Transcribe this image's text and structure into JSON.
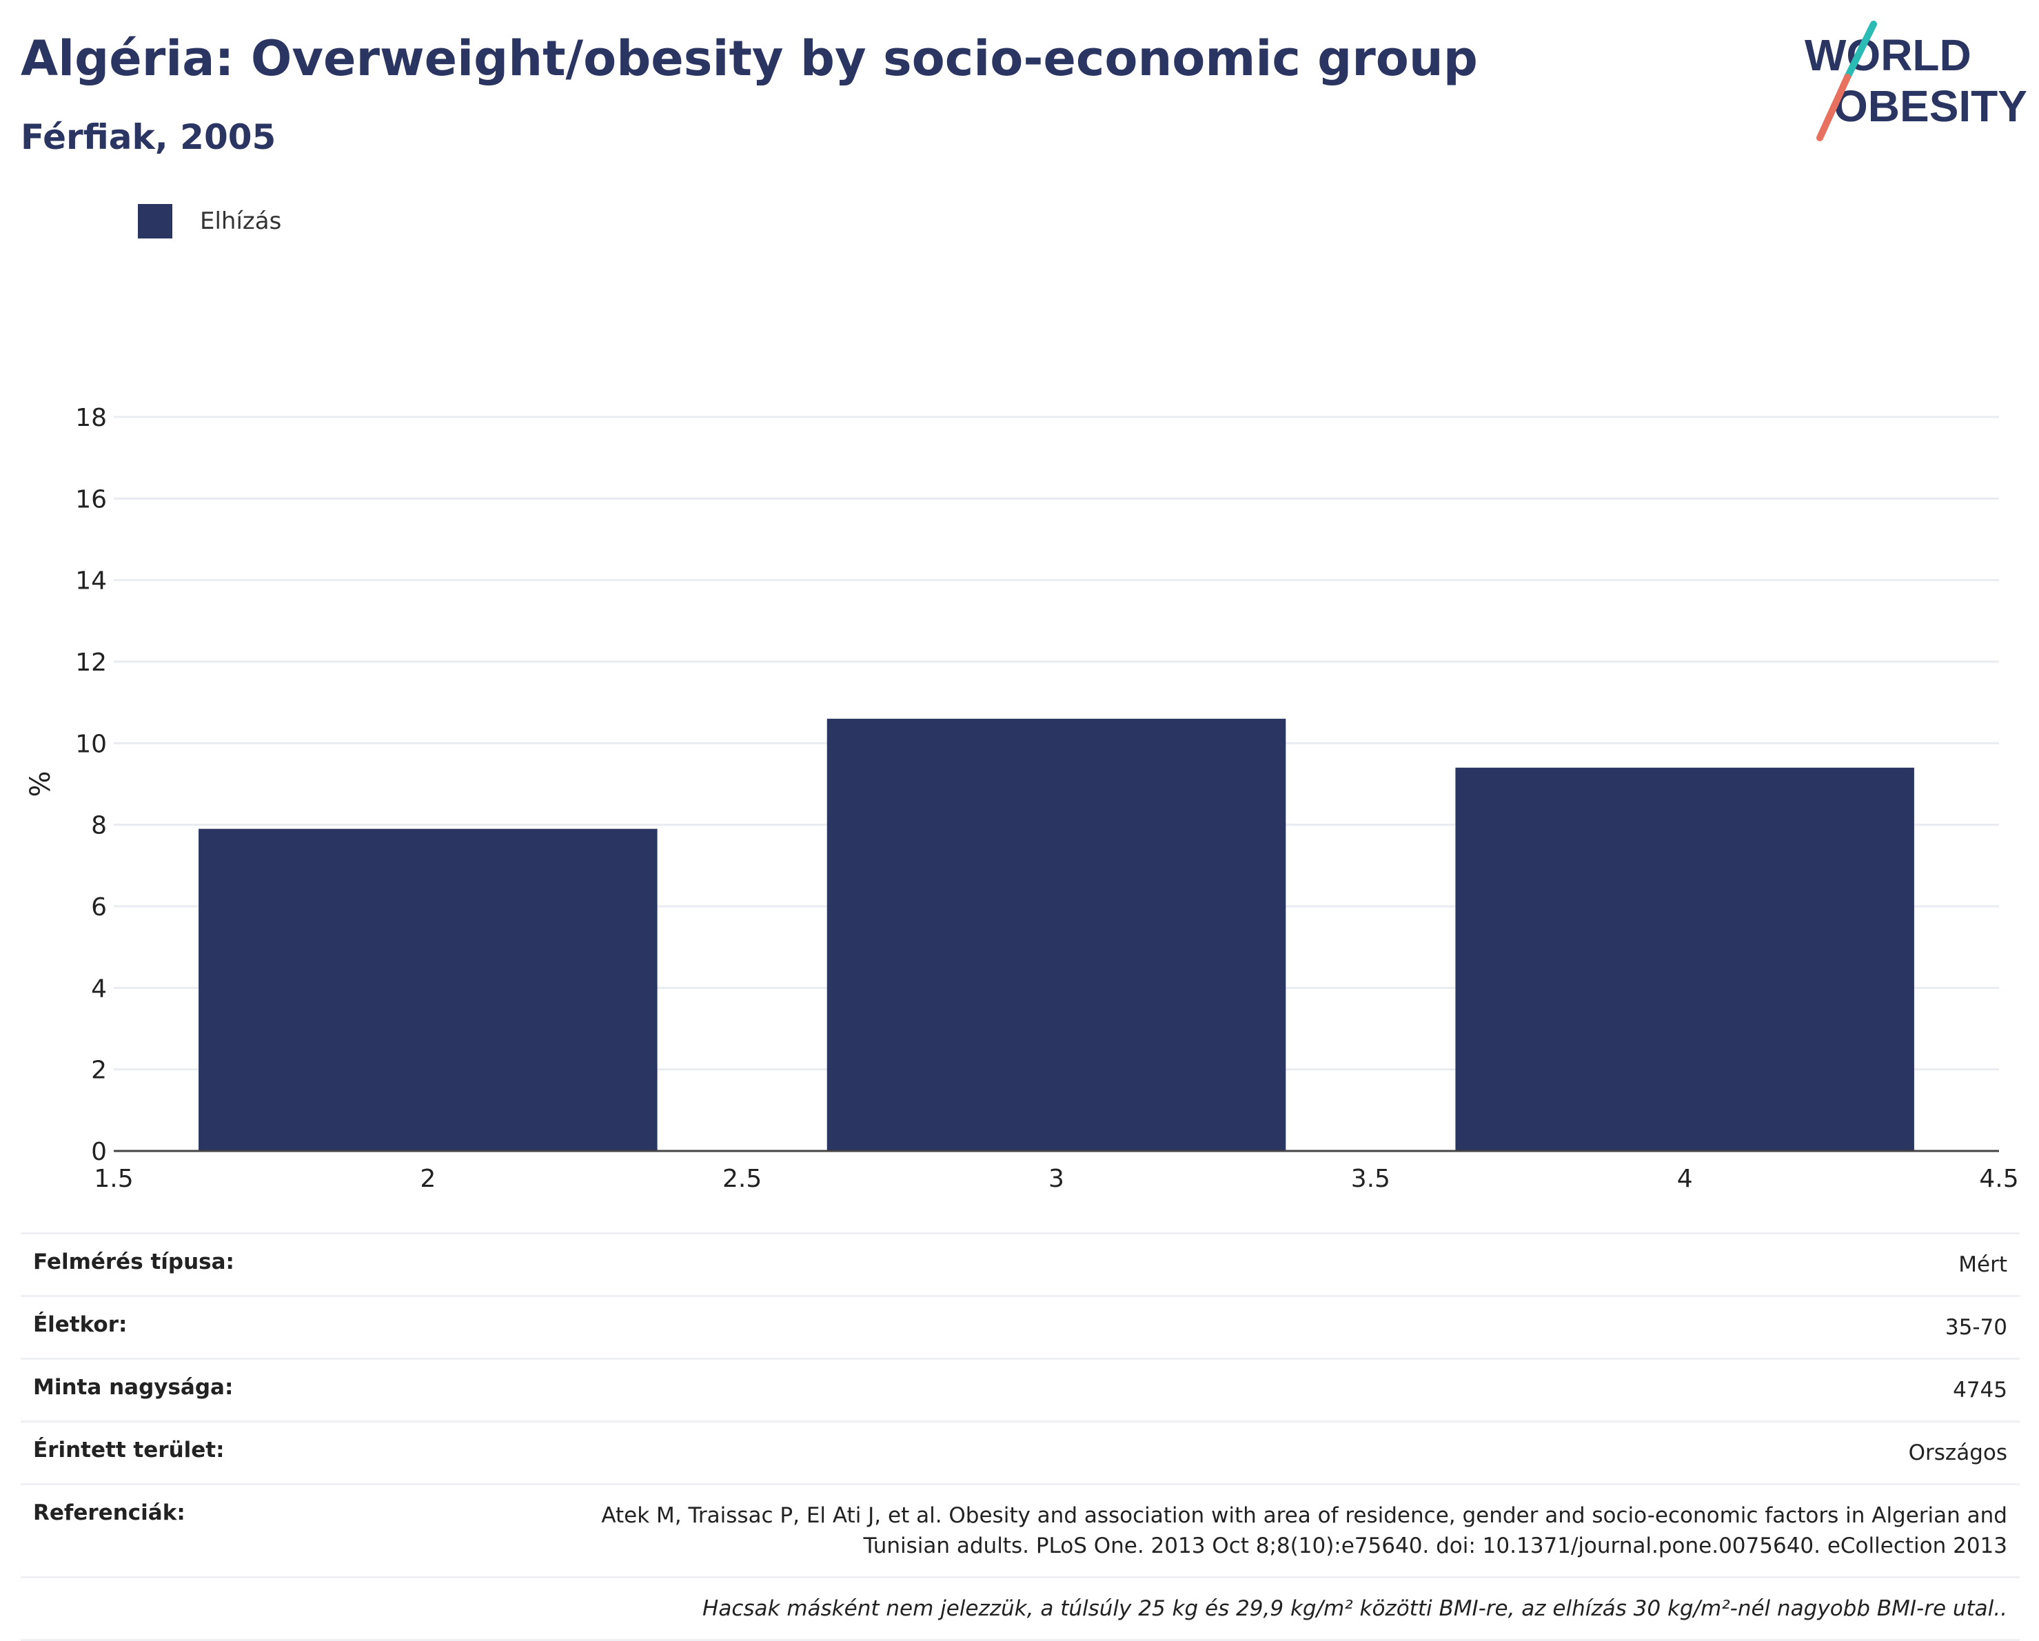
{
  "header": {
    "title": "Algéria: Overweight/obesity by socio-economic group",
    "subtitle": "Férfiak, 2005"
  },
  "logo": {
    "line1": "WORLD",
    "line2": "OBESITY"
  },
  "colors": {
    "bar": "#2a3561",
    "text": "#2a3561",
    "grid": "#e9ecf1",
    "logo_teal": "#2bbbb5",
    "logo_coral": "#e8705f"
  },
  "legend": {
    "items": [
      {
        "label": "Elhízás",
        "color": "#2a3561"
      }
    ]
  },
  "chart_data": {
    "type": "bar",
    "x": [
      2,
      3,
      4
    ],
    "series": [
      {
        "name": "Elhízás",
        "values": [
          7.9,
          10.6,
          9.4
        ]
      }
    ],
    "bar_width_units": 0.73,
    "xlim": [
      1.5,
      4.5
    ],
    "ylim": [
      0,
      18
    ],
    "xticks": [
      "1.5",
      "2",
      "2.5",
      "3",
      "3.5",
      "4",
      "4.5"
    ],
    "yticks": [
      "0",
      "2",
      "4",
      "6",
      "8",
      "10",
      "12",
      "14",
      "16",
      "18"
    ],
    "ylabel": "%",
    "xlabel": "",
    "grid": true
  },
  "meta": {
    "survey_type": {
      "label": "Felmérés típusa:",
      "value": "Mért"
    },
    "age": {
      "label": "Életkor:",
      "value": "35-70"
    },
    "sample_size": {
      "label": "Minta nagysága:",
      "value": "4745"
    },
    "area": {
      "label": "Érintett terület:",
      "value": "Országos"
    },
    "references": {
      "label": "Referenciák:",
      "line1": "Atek M, Traissac P, El Ati J, et al. Obesity and association with area of residence, gender and socio-economic factors in Algerian and",
      "line2": "Tunisian adults. PLoS One. 2013 Oct 8;8(10):e75640. doi: 10.1371/journal.pone.0075640. eCollection 2013"
    },
    "note": "Hacsak másként nem jelezzük, a túlsúly 25 kg és 29,9 kg/m² közötti BMI-re, az elhízás 30 kg/m²-nél nagyobb BMI-re utal.."
  }
}
